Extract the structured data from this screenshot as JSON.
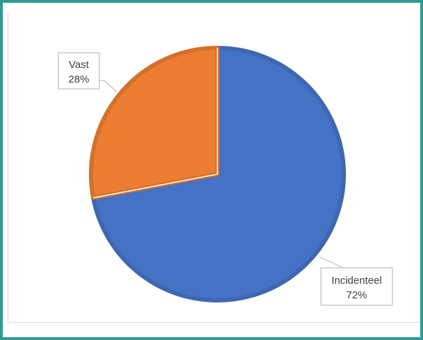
{
  "chart_data": {
    "type": "pie",
    "title": "",
    "slices": [
      {
        "label": "Incidenteel",
        "value": 72,
        "value_label": "72%",
        "color": "#4472c4",
        "border": "#3f67b0"
      },
      {
        "label": "Vast",
        "value": 28,
        "value_label": "28%",
        "color": "#ed7d31",
        "border": "#d3702c"
      }
    ],
    "start_angle_deg": 0,
    "direction": "clockwise",
    "legend": "none",
    "data_labels": "callouts"
  },
  "colors": {
    "frame_border": "#2e9a95",
    "callout_border": "#bfbfbf",
    "label_text": "#404040"
  }
}
